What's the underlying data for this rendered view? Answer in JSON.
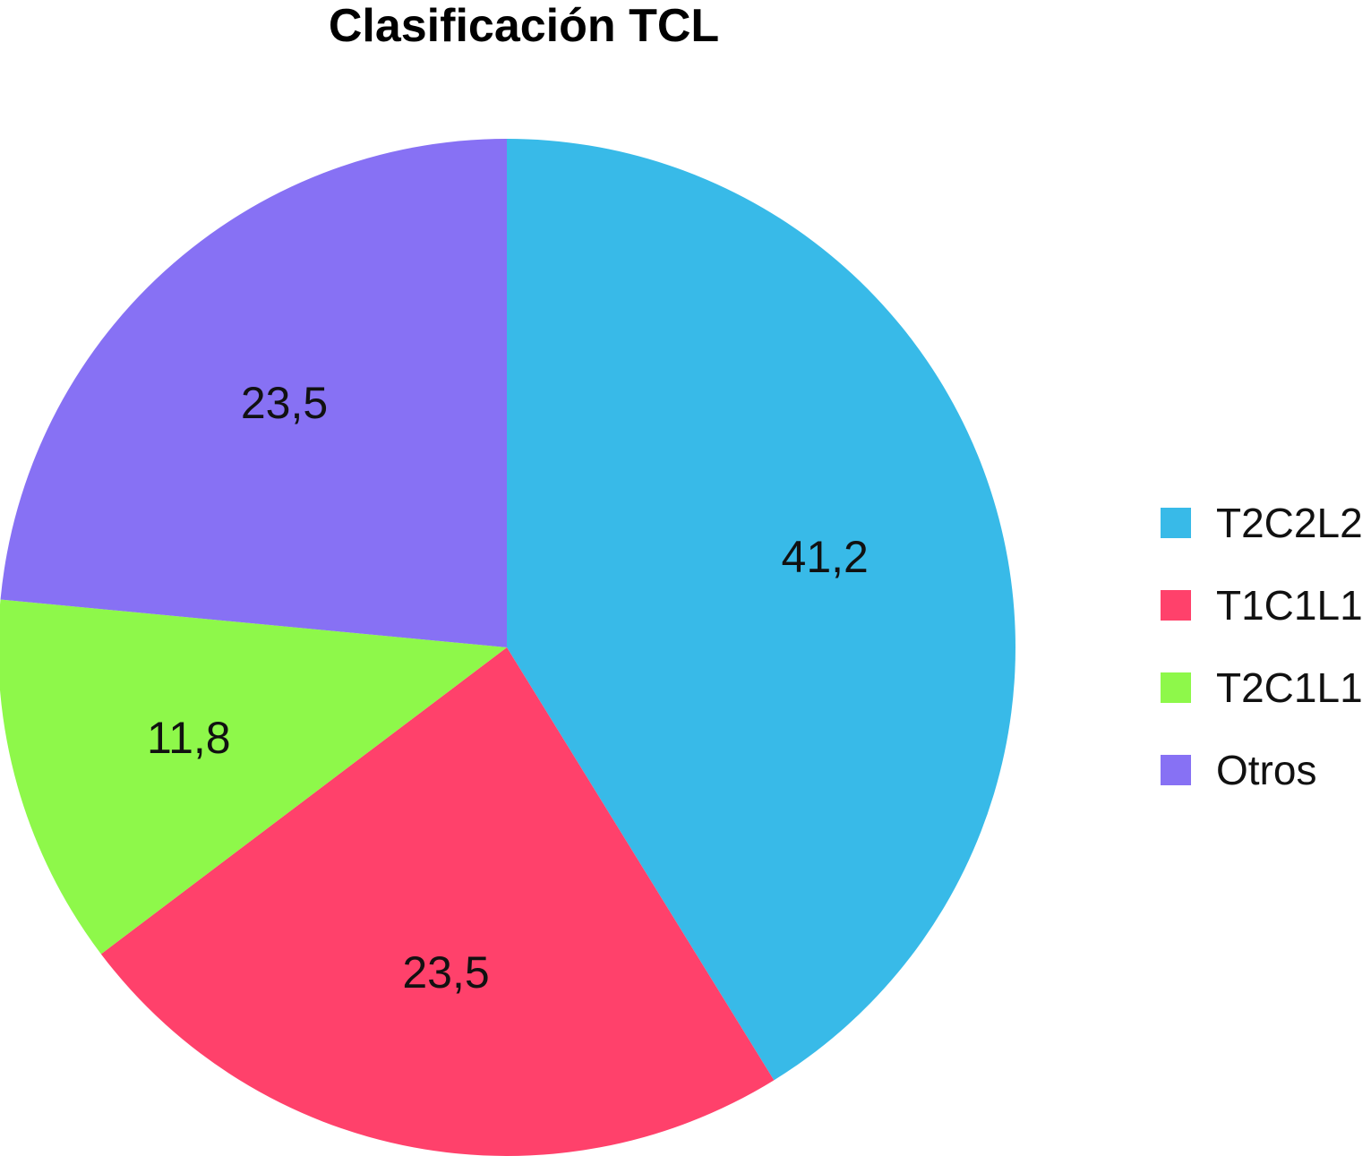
{
  "chart_data": {
    "type": "pie",
    "title": "Clasificación TCL",
    "categories": [
      "T2C2L2",
      "T1C1L1",
      "T2C1L1",
      "Otros"
    ],
    "values": [
      41.2,
      23.5,
      11.8,
      23.5
    ],
    "value_labels": [
      "41,2",
      "23,5",
      "11,8",
      "23,5"
    ],
    "colors": [
      "#38BAE8",
      "#FF416B",
      "#8EF84A",
      "#8771F4"
    ],
    "start_angle": "12 o'clock",
    "direction": "clockwise",
    "legend_position": "right"
  }
}
